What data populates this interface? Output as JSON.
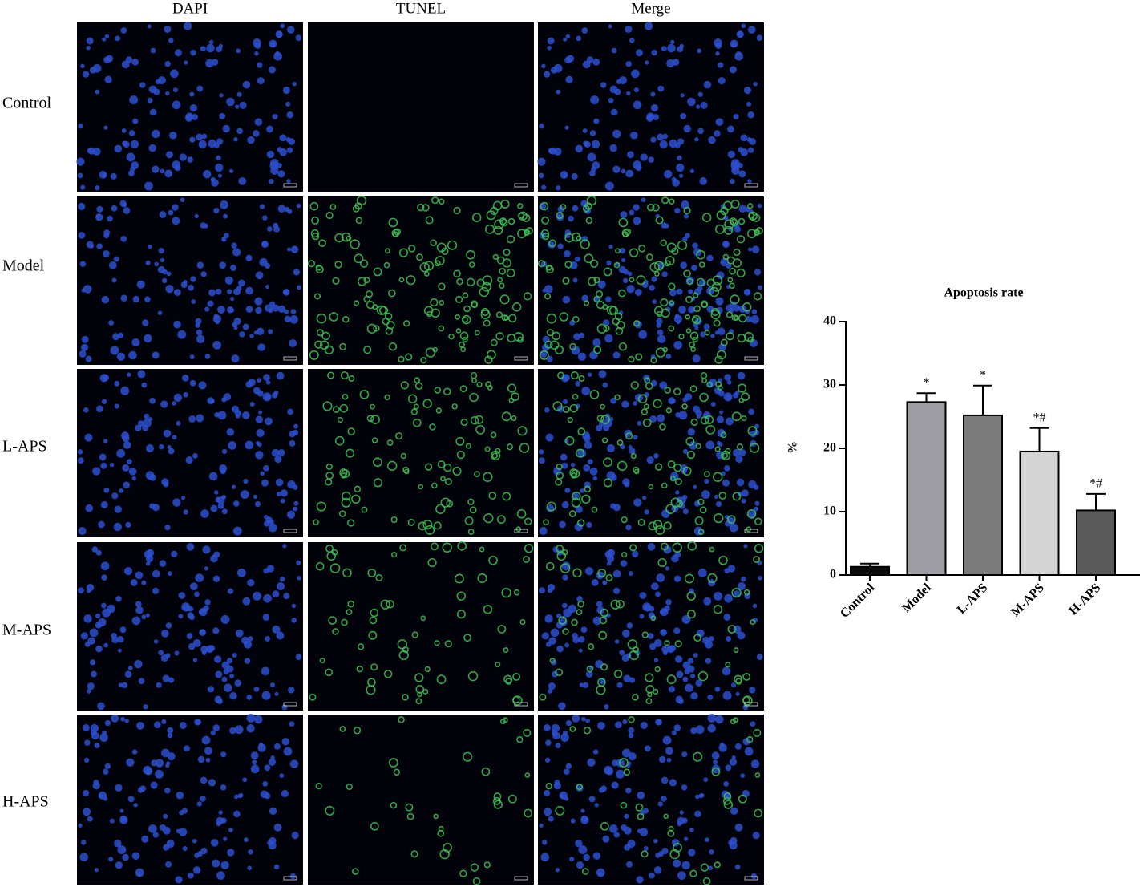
{
  "panels": {
    "columns": [
      "DAPI",
      "TUNEL",
      "Merge"
    ],
    "rows": [
      "Control",
      "Model",
      "L-APS",
      "M-APS",
      "H-APS"
    ]
  },
  "chart_data": {
    "type": "bar",
    "title": "Apoptosis rate",
    "y_label": "%",
    "categories": [
      "Control",
      "Model",
      "L-APS",
      "M-APS",
      "H-APS"
    ],
    "values": [
      1.3,
      27.3,
      25.2,
      19.5,
      10.2
    ],
    "errors": [
      0.5,
      1.4,
      4.7,
      3.7,
      2.6
    ],
    "annotations": [
      null,
      "*",
      "*",
      "*#",
      "*#"
    ],
    "colors": [
      "#0a0a0a",
      "#9d9da3",
      "#7a7a7a",
      "#d4d4d4",
      "#5a5a5a"
    ],
    "ylim": [
      0,
      40
    ],
    "yticks": [
      0,
      10,
      20,
      30,
      40
    ]
  }
}
